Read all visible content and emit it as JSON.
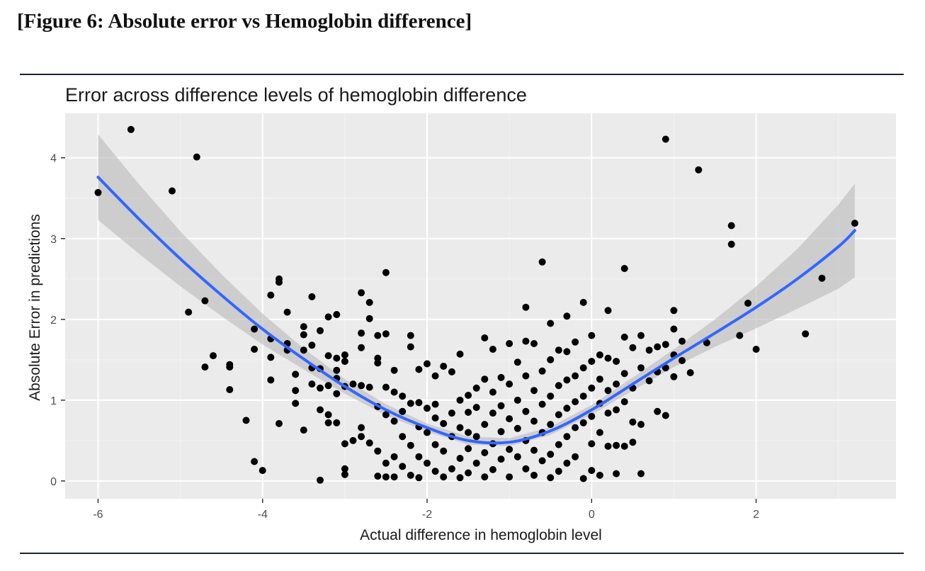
{
  "figure_caption": "[Figure 6: Absolute error vs Hemoglobin difference]",
  "colors": {
    "panel": "#ebebeb",
    "grid_major": "#ffffff",
    "grid_minor": "#f4f4f4",
    "points": "#000000",
    "smooth_line": "#3366ff",
    "ribbon": "#bdbdbd",
    "axis_text": "#4d4d4d",
    "title_text": "#1a1a1a"
  },
  "chart_data": {
    "type": "scatter",
    "title": "Error across difference levels of hemoglobin difference",
    "xlabel": "Actual difference in hemoglobin level",
    "ylabel": "Absolute Error in predictions",
    "xlim": [
      -6.4,
      3.7
    ],
    "ylim": [
      -0.22,
      4.55
    ],
    "xticks": [
      -6,
      -4,
      -2,
      0,
      2
    ],
    "yticks": [
      0,
      1,
      2,
      3,
      4
    ],
    "xtick_labels": [
      "-6",
      "-4",
      "-2",
      "0",
      "2"
    ],
    "ytick_labels": [
      "0",
      "1",
      "2",
      "3",
      "4"
    ],
    "grid": true,
    "legend": false,
    "smooth": {
      "method": "quadratic fit with confidence band",
      "x": [
        -6.0,
        -5.5,
        -5.0,
        -4.5,
        -4.0,
        -3.5,
        -3.0,
        -2.5,
        -2.0,
        -1.5,
        -1.0,
        -0.5,
        0.0,
        0.5,
        1.0,
        1.5,
        2.0,
        2.5,
        3.0,
        3.2
      ],
      "y": [
        3.76,
        3.24,
        2.75,
        2.3,
        1.88,
        1.51,
        1.17,
        0.88,
        0.66,
        0.5,
        0.48,
        0.62,
        0.88,
        1.2,
        1.52,
        1.83,
        2.15,
        2.5,
        2.9,
        3.1
      ],
      "ci_halfwidth": [
        0.53,
        0.43,
        0.34,
        0.26,
        0.19,
        0.13,
        0.09,
        0.07,
        0.05,
        0.05,
        0.05,
        0.05,
        0.06,
        0.08,
        0.11,
        0.17,
        0.26,
        0.37,
        0.52,
        0.58
      ]
    },
    "points": [
      [
        -6.0,
        3.57
      ],
      [
        -5.6,
        4.35
      ],
      [
        -5.1,
        3.59
      ],
      [
        -4.8,
        4.01
      ],
      [
        -4.9,
        2.09
      ],
      [
        -4.7,
        2.23
      ],
      [
        -4.7,
        1.41
      ],
      [
        -4.6,
        1.55
      ],
      [
        -4.4,
        1.44
      ],
      [
        -4.4,
        1.41
      ],
      [
        -4.4,
        1.13
      ],
      [
        -4.2,
        0.75
      ],
      [
        -4.1,
        1.88
      ],
      [
        -4.1,
        1.63
      ],
      [
        -4.1,
        0.24
      ],
      [
        -4.0,
        0.13
      ],
      [
        -3.9,
        2.3
      ],
      [
        -3.9,
        1.76
      ],
      [
        -3.9,
        1.53
      ],
      [
        -3.9,
        1.25
      ],
      [
        -3.8,
        2.5
      ],
      [
        -3.8,
        2.46
      ],
      [
        -3.8,
        0.71
      ],
      [
        -3.7,
        2.09
      ],
      [
        -3.7,
        1.7
      ],
      [
        -3.7,
        1.62
      ],
      [
        -3.6,
        1.32
      ],
      [
        -3.6,
        1.12
      ],
      [
        -3.6,
        0.96
      ],
      [
        -3.5,
        1.91
      ],
      [
        -3.5,
        1.81
      ],
      [
        -3.5,
        1.62
      ],
      [
        -3.5,
        0.63
      ],
      [
        -3.4,
        2.28
      ],
      [
        -3.4,
        1.68
      ],
      [
        -3.4,
        1.4
      ],
      [
        -3.4,
        1.2
      ],
      [
        -3.3,
        1.86
      ],
      [
        -3.3,
        1.39
      ],
      [
        -3.3,
        1.15
      ],
      [
        -3.3,
        0.88
      ],
      [
        -3.3,
        0.01
      ],
      [
        -3.2,
        2.03
      ],
      [
        -3.2,
        1.55
      ],
      [
        -3.2,
        1.18
      ],
      [
        -3.2,
        0.82
      ],
      [
        -3.2,
        0.72
      ],
      [
        -3.1,
        2.06
      ],
      [
        -3.1,
        1.52
      ],
      [
        -3.1,
        1.37
      ],
      [
        -3.1,
        1.27
      ],
      [
        -3.1,
        1.08
      ],
      [
        -3.1,
        0.72
      ],
      [
        -3.0,
        1.56
      ],
      [
        -3.0,
        1.48
      ],
      [
        -3.0,
        1.17
      ],
      [
        -3.0,
        0.46
      ],
      [
        -3.0,
        0.15
      ],
      [
        -3.0,
        0.08
      ],
      [
        -2.9,
        1.2
      ],
      [
        -2.9,
        0.5
      ],
      [
        -2.8,
        2.33
      ],
      [
        -2.8,
        1.83
      ],
      [
        -2.8,
        1.65
      ],
      [
        -2.8,
        1.18
      ],
      [
        -2.8,
        0.66
      ],
      [
        -2.8,
        0.55
      ],
      [
        -2.7,
        2.21
      ],
      [
        -2.7,
        2.01
      ],
      [
        -2.7,
        1.16
      ],
      [
        -2.7,
        0.47
      ],
      [
        -2.6,
        1.8
      ],
      [
        -2.6,
        1.52
      ],
      [
        -2.6,
        1.46
      ],
      [
        -2.6,
        0.92
      ],
      [
        -2.6,
        0.37
      ],
      [
        -2.6,
        0.06
      ],
      [
        -2.5,
        2.58
      ],
      [
        -2.5,
        1.82
      ],
      [
        -2.5,
        1.16
      ],
      [
        -2.5,
        0.82
      ],
      [
        -2.5,
        0.22
      ],
      [
        -2.5,
        0.05
      ],
      [
        -2.4,
        1.37
      ],
      [
        -2.4,
        1.1
      ],
      [
        -2.4,
        0.74
      ],
      [
        -2.4,
        0.3
      ],
      [
        -2.4,
        0.05
      ],
      [
        -2.3,
        1.05
      ],
      [
        -2.3,
        0.86
      ],
      [
        -2.3,
        0.55
      ],
      [
        -2.3,
        0.18
      ],
      [
        -2.2,
        1.8
      ],
      [
        -2.2,
        1.66
      ],
      [
        -2.2,
        0.96
      ],
      [
        -2.2,
        0.44
      ],
      [
        -2.2,
        0.07
      ],
      [
        -2.1,
        1.38
      ],
      [
        -2.1,
        0.97
      ],
      [
        -2.1,
        0.67
      ],
      [
        -2.1,
        0.3
      ],
      [
        -2.1,
        0.04
      ],
      [
        -2.0,
        1.45
      ],
      [
        -2.0,
        0.9
      ],
      [
        -2.0,
        0.6
      ],
      [
        -2.0,
        0.22
      ],
      [
        -1.9,
        1.3
      ],
      [
        -1.9,
        0.95
      ],
      [
        -1.9,
        0.78
      ],
      [
        -1.9,
        0.45
      ],
      [
        -1.9,
        0.12
      ],
      [
        -1.8,
        1.42
      ],
      [
        -1.8,
        0.71
      ],
      [
        -1.8,
        0.37
      ],
      [
        -1.8,
        0.05
      ],
      [
        -1.7,
        1.35
      ],
      [
        -1.7,
        0.84
      ],
      [
        -1.7,
        0.55
      ],
      [
        -1.7,
        0.15
      ],
      [
        -1.6,
        1.57
      ],
      [
        -1.6,
        1.0
      ],
      [
        -1.6,
        0.66
      ],
      [
        -1.6,
        0.28
      ],
      [
        -1.6,
        0.04
      ],
      [
        -1.5,
        1.06
      ],
      [
        -1.5,
        0.85
      ],
      [
        -1.5,
        0.6
      ],
      [
        -1.5,
        0.4
      ],
      [
        -1.5,
        0.1
      ],
      [
        -1.4,
        1.15
      ],
      [
        -1.4,
        0.91
      ],
      [
        -1.4,
        0.55
      ],
      [
        -1.4,
        0.22
      ],
      [
        -1.3,
        1.77
      ],
      [
        -1.3,
        1.26
      ],
      [
        -1.3,
        0.7
      ],
      [
        -1.3,
        0.35
      ],
      [
        -1.3,
        0.05
      ],
      [
        -1.2,
        1.63
      ],
      [
        -1.2,
        1.1
      ],
      [
        -1.2,
        0.84
      ],
      [
        -1.2,
        0.46
      ],
      [
        -1.2,
        0.14
      ],
      [
        -1.1,
        1.28
      ],
      [
        -1.1,
        0.93
      ],
      [
        -1.1,
        0.61
      ],
      [
        -1.1,
        0.27
      ],
      [
        -1.0,
        1.7
      ],
      [
        -1.0,
        1.2
      ],
      [
        -1.0,
        0.77
      ],
      [
        -1.0,
        0.39
      ],
      [
        -1.0,
        0.05
      ],
      [
        -0.9,
        1.47
      ],
      [
        -0.9,
        1.0
      ],
      [
        -0.9,
        0.65
      ],
      [
        -0.9,
        0.3
      ],
      [
        -0.8,
        2.15
      ],
      [
        -0.8,
        1.73
      ],
      [
        -0.8,
        1.3
      ],
      [
        -0.8,
        0.86
      ],
      [
        -0.8,
        0.5
      ],
      [
        -0.8,
        0.15
      ],
      [
        -0.7,
        1.7
      ],
      [
        -0.7,
        1.12
      ],
      [
        -0.7,
        0.74
      ],
      [
        -0.7,
        0.38
      ],
      [
        -0.7,
        0.07
      ],
      [
        -0.6,
        2.71
      ],
      [
        -0.6,
        1.36
      ],
      [
        -0.6,
        0.95
      ],
      [
        -0.6,
        0.6
      ],
      [
        -0.6,
        0.25
      ],
      [
        -0.5,
        1.95
      ],
      [
        -0.5,
        1.5
      ],
      [
        -0.5,
        1.05
      ],
      [
        -0.5,
        0.7
      ],
      [
        -0.5,
        0.33
      ],
      [
        -0.5,
        0.04
      ],
      [
        -0.4,
        1.62
      ],
      [
        -0.4,
        1.18
      ],
      [
        -0.4,
        0.82
      ],
      [
        -0.4,
        0.45
      ],
      [
        -0.4,
        0.12
      ],
      [
        -0.3,
        2.04
      ],
      [
        -0.3,
        1.6
      ],
      [
        -0.3,
        1.25
      ],
      [
        -0.3,
        0.9
      ],
      [
        -0.3,
        0.55
      ],
      [
        -0.3,
        0.22
      ],
      [
        -0.2,
        1.72
      ],
      [
        -0.2,
        1.3
      ],
      [
        -0.2,
        0.98
      ],
      [
        -0.2,
        0.66
      ],
      [
        -0.2,
        0.3
      ],
      [
        -0.1,
        2.21
      ],
      [
        -0.1,
        1.4
      ],
      [
        -0.1,
        1.05
      ],
      [
        -0.1,
        0.72
      ],
      [
        -0.1,
        0.03
      ],
      [
        0.0,
        1.8
      ],
      [
        0.0,
        1.48
      ],
      [
        0.0,
        1.15
      ],
      [
        0.0,
        0.8
      ],
      [
        0.0,
        0.46
      ],
      [
        0.0,
        0.13
      ],
      [
        0.1,
        1.56
      ],
      [
        0.1,
        1.26
      ],
      [
        0.1,
        0.96
      ],
      [
        0.1,
        0.6
      ],
      [
        0.1,
        0.07
      ],
      [
        0.2,
        2.11
      ],
      [
        0.2,
        1.52
      ],
      [
        0.2,
        1.12
      ],
      [
        0.2,
        0.84
      ],
      [
        0.2,
        0.43
      ],
      [
        0.3,
        1.48
      ],
      [
        0.3,
        1.2
      ],
      [
        0.3,
        0.88
      ],
      [
        0.3,
        0.44
      ],
      [
        0.3,
        0.09
      ],
      [
        0.4,
        2.63
      ],
      [
        0.4,
        1.78
      ],
      [
        0.4,
        1.33
      ],
      [
        0.4,
        0.98
      ],
      [
        0.4,
        0.43
      ],
      [
        0.5,
        1.65
      ],
      [
        0.5,
        1.15
      ],
      [
        0.5,
        0.73
      ],
      [
        0.5,
        0.48
      ],
      [
        0.6,
        1.8
      ],
      [
        0.6,
        1.4
      ],
      [
        0.6,
        0.7
      ],
      [
        0.6,
        0.09
      ],
      [
        0.7,
        1.62
      ],
      [
        0.7,
        1.24
      ],
      [
        0.8,
        1.66
      ],
      [
        0.8,
        1.35
      ],
      [
        0.8,
        0.86
      ],
      [
        0.9,
        4.23
      ],
      [
        0.9,
        1.69
      ],
      [
        0.9,
        1.4
      ],
      [
        0.9,
        0.81
      ],
      [
        1.0,
        2.11
      ],
      [
        1.0,
        1.88
      ],
      [
        1.0,
        1.56
      ],
      [
        1.0,
        1.29
      ],
      [
        1.1,
        1.73
      ],
      [
        1.1,
        1.49
      ],
      [
        1.2,
        1.34
      ],
      [
        1.3,
        3.85
      ],
      [
        1.4,
        1.71
      ],
      [
        1.7,
        3.16
      ],
      [
        1.7,
        2.93
      ],
      [
        1.8,
        1.8
      ],
      [
        1.9,
        2.2
      ],
      [
        2.0,
        1.63
      ],
      [
        2.6,
        1.82
      ],
      [
        2.8,
        2.51
      ],
      [
        3.2,
        3.19
      ]
    ]
  }
}
